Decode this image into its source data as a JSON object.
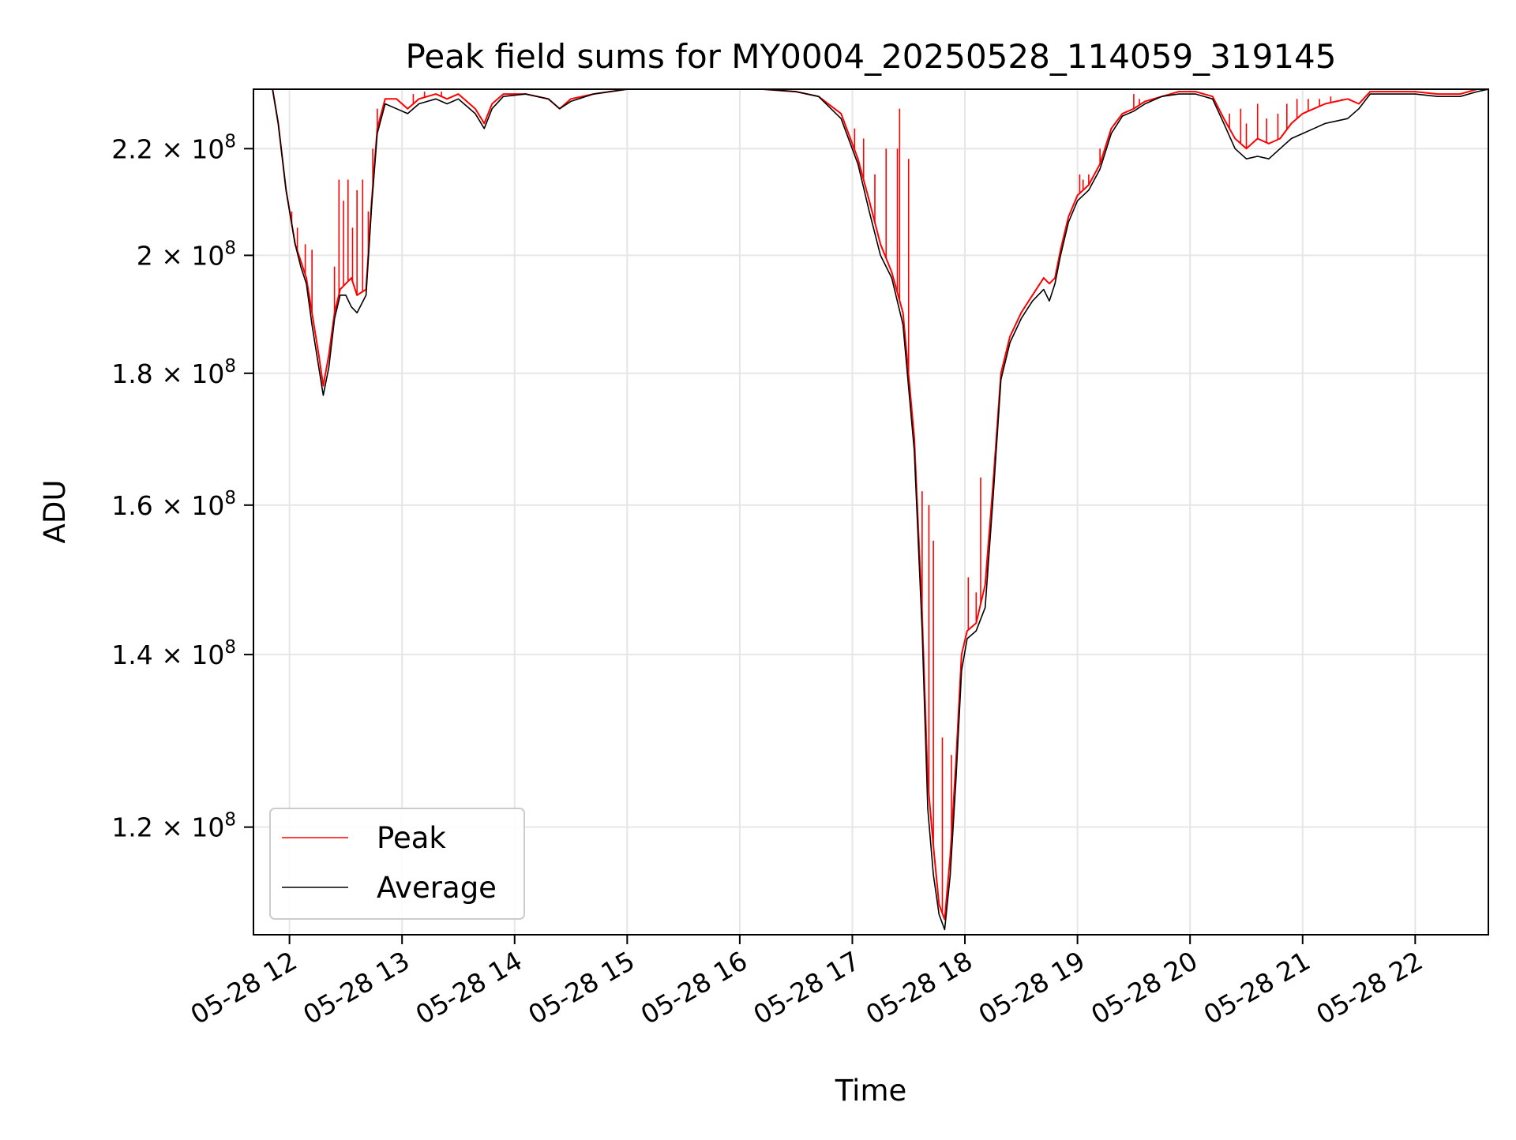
{
  "chart_data": {
    "type": "line",
    "title": "Peak field sums for MY0004_20250528_114059_319145",
    "xlabel": "Time",
    "ylabel": "ADU",
    "x_unit": "hours of day on 2025-05-28",
    "xlim": [
      11.68,
      22.65
    ],
    "ylim": [
      109000000,
      232000000
    ],
    "yscale": "log",
    "grid": true,
    "legend_position": "lower-left",
    "x_ticks": [
      {
        "value": 12,
        "label": "05-28 12"
      },
      {
        "value": 13,
        "label": "05-28 13"
      },
      {
        "value": 14,
        "label": "05-28 14"
      },
      {
        "value": 15,
        "label": "05-28 15"
      },
      {
        "value": 16,
        "label": "05-28 16"
      },
      {
        "value": 17,
        "label": "05-28 17"
      },
      {
        "value": 18,
        "label": "05-28 18"
      },
      {
        "value": 19,
        "label": "05-28 19"
      },
      {
        "value": 20,
        "label": "05-28 20"
      },
      {
        "value": 21,
        "label": "05-28 21"
      },
      {
        "value": 22,
        "label": "05-28 22"
      }
    ],
    "y_ticks": [
      {
        "value": 120000000,
        "mantissa": "1.2",
        "base": "10",
        "exp": "8"
      },
      {
        "value": 140000000,
        "mantissa": "1.4",
        "base": "10",
        "exp": "8"
      },
      {
        "value": 160000000,
        "mantissa": "1.6",
        "base": "10",
        "exp": "8"
      },
      {
        "value": 180000000,
        "mantissa": "1.8",
        "base": "10",
        "exp": "8"
      },
      {
        "value": 200000000,
        "mantissa": "2",
        "base": "10",
        "exp": "8"
      },
      {
        "value": 220000000,
        "mantissa": "2.2",
        "base": "10",
        "exp": "8"
      }
    ],
    "series": [
      {
        "name": "Peak",
        "color": "#ff0000",
        "points": [
          [
            11.68,
            232000000
          ],
          [
            11.85,
            232000000
          ],
          [
            11.9,
            225000000
          ],
          [
            11.97,
            212000000
          ],
          [
            12.05,
            202000000
          ],
          [
            12.1,
            199000000
          ],
          [
            12.15,
            196000000
          ],
          [
            12.2,
            190000000
          ],
          [
            12.26,
            183000000
          ],
          [
            12.3,
            178000000
          ],
          [
            12.35,
            183000000
          ],
          [
            12.4,
            190000000
          ],
          [
            12.45,
            194000000
          ],
          [
            12.5,
            195000000
          ],
          [
            12.55,
            196000000
          ],
          [
            12.6,
            193000000
          ],
          [
            12.68,
            194000000
          ],
          [
            12.73,
            210000000
          ],
          [
            12.78,
            224000000
          ],
          [
            12.85,
            230000000
          ],
          [
            12.95,
            230000000
          ],
          [
            13.05,
            228000000
          ],
          [
            13.15,
            230000000
          ],
          [
            13.3,
            231000000
          ],
          [
            13.4,
            230000000
          ],
          [
            13.5,
            231000000
          ],
          [
            13.65,
            228000000
          ],
          [
            13.73,
            225000000
          ],
          [
            13.8,
            229000000
          ],
          [
            13.9,
            231000000
          ],
          [
            14.1,
            231000000
          ],
          [
            14.3,
            230000000
          ],
          [
            14.4,
            228000000
          ],
          [
            14.5,
            230000000
          ],
          [
            14.7,
            231000000
          ],
          [
            15.0,
            232000000
          ],
          [
            15.6,
            232000000
          ],
          [
            16.2,
            232000000
          ],
          [
            16.5,
            231500000
          ],
          [
            16.7,
            230500000
          ],
          [
            16.9,
            227000000
          ],
          [
            17.05,
            218000000
          ],
          [
            17.15,
            210000000
          ],
          [
            17.25,
            202000000
          ],
          [
            17.35,
            197000000
          ],
          [
            17.45,
            190000000
          ],
          [
            17.55,
            170000000
          ],
          [
            17.62,
            145000000
          ],
          [
            17.67,
            125000000
          ],
          [
            17.72,
            118000000
          ],
          [
            17.77,
            112000000
          ],
          [
            17.82,
            110500000
          ],
          [
            17.87,
            117000000
          ],
          [
            17.92,
            127000000
          ],
          [
            17.97,
            140000000
          ],
          [
            18.02,
            143000000
          ],
          [
            18.1,
            144000000
          ],
          [
            18.18,
            149000000
          ],
          [
            18.25,
            163000000
          ],
          [
            18.32,
            180000000
          ],
          [
            18.4,
            186000000
          ],
          [
            18.5,
            190000000
          ],
          [
            18.6,
            193000000
          ],
          [
            18.7,
            196000000
          ],
          [
            18.75,
            195000000
          ],
          [
            18.8,
            196000000
          ],
          [
            18.85,
            201000000
          ],
          [
            18.92,
            207000000
          ],
          [
            19.0,
            211000000
          ],
          [
            19.1,
            213000000
          ],
          [
            19.2,
            217000000
          ],
          [
            19.3,
            224000000
          ],
          [
            19.4,
            227000000
          ],
          [
            19.5,
            228000000
          ],
          [
            19.6,
            229500000
          ],
          [
            19.75,
            230500000
          ],
          [
            19.9,
            231500000
          ],
          [
            20.05,
            231500000
          ],
          [
            20.2,
            230500000
          ],
          [
            20.3,
            226000000
          ],
          [
            20.4,
            222000000
          ],
          [
            20.5,
            220000000
          ],
          [
            20.6,
            222000000
          ],
          [
            20.7,
            221000000
          ],
          [
            20.8,
            222000000
          ],
          [
            20.9,
            225000000
          ],
          [
            21.0,
            227000000
          ],
          [
            21.1,
            228000000
          ],
          [
            21.2,
            229000000
          ],
          [
            21.3,
            229500000
          ],
          [
            21.4,
            230000000
          ],
          [
            21.5,
            229000000
          ],
          [
            21.6,
            231500000
          ],
          [
            21.8,
            231500000
          ],
          [
            22.0,
            231500000
          ],
          [
            22.2,
            231000000
          ],
          [
            22.4,
            231000000
          ],
          [
            22.55,
            232000000
          ],
          [
            22.65,
            232000000
          ]
        ]
      },
      {
        "name": "Average",
        "color": "#000000",
        "points": [
          [
            11.68,
            232000000
          ],
          [
            11.85,
            232000000
          ],
          [
            11.9,
            225000000
          ],
          [
            11.97,
            212000000
          ],
          [
            12.05,
            202000000
          ],
          [
            12.1,
            198000000
          ],
          [
            12.15,
            195000000
          ],
          [
            12.2,
            188000000
          ],
          [
            12.26,
            181000000
          ],
          [
            12.3,
            176500000
          ],
          [
            12.35,
            181000000
          ],
          [
            12.4,
            189000000
          ],
          [
            12.45,
            193000000
          ],
          [
            12.5,
            193000000
          ],
          [
            12.55,
            191000000
          ],
          [
            12.6,
            190000000
          ],
          [
            12.68,
            193000000
          ],
          [
            12.73,
            209000000
          ],
          [
            12.78,
            223000000
          ],
          [
            12.85,
            229000000
          ],
          [
            12.95,
            228000000
          ],
          [
            13.05,
            227000000
          ],
          [
            13.15,
            229000000
          ],
          [
            13.3,
            230000000
          ],
          [
            13.4,
            229000000
          ],
          [
            13.5,
            230000000
          ],
          [
            13.65,
            227000000
          ],
          [
            13.73,
            224000000
          ],
          [
            13.8,
            228000000
          ],
          [
            13.9,
            230500000
          ],
          [
            14.1,
            231000000
          ],
          [
            14.3,
            230000000
          ],
          [
            14.4,
            228000000
          ],
          [
            14.5,
            229500000
          ],
          [
            14.7,
            231000000
          ],
          [
            15.0,
            232000000
          ],
          [
            15.6,
            232000000
          ],
          [
            16.2,
            232000000
          ],
          [
            16.5,
            231500000
          ],
          [
            16.7,
            230500000
          ],
          [
            16.9,
            226000000
          ],
          [
            17.05,
            217000000
          ],
          [
            17.15,
            208000000
          ],
          [
            17.25,
            200000000
          ],
          [
            17.35,
            196000000
          ],
          [
            17.45,
            188000000
          ],
          [
            17.55,
            168000000
          ],
          [
            17.62,
            143000000
          ],
          [
            17.67,
            122000000
          ],
          [
            17.72,
            115000000
          ],
          [
            17.77,
            111000000
          ],
          [
            17.82,
            109500000
          ],
          [
            17.87,
            115000000
          ],
          [
            17.92,
            125000000
          ],
          [
            17.97,
            138000000
          ],
          [
            18.02,
            142000000
          ],
          [
            18.1,
            143000000
          ],
          [
            18.18,
            146000000
          ],
          [
            18.25,
            161000000
          ],
          [
            18.32,
            179000000
          ],
          [
            18.4,
            185000000
          ],
          [
            18.5,
            189000000
          ],
          [
            18.6,
            192000000
          ],
          [
            18.7,
            194000000
          ],
          [
            18.75,
            192000000
          ],
          [
            18.8,
            195000000
          ],
          [
            18.85,
            200000000
          ],
          [
            18.92,
            206000000
          ],
          [
            19.0,
            210000000
          ],
          [
            19.1,
            212000000
          ],
          [
            19.2,
            216000000
          ],
          [
            19.3,
            223000000
          ],
          [
            19.4,
            226500000
          ],
          [
            19.5,
            227500000
          ],
          [
            19.6,
            229000000
          ],
          [
            19.75,
            230500000
          ],
          [
            19.9,
            231000000
          ],
          [
            20.05,
            231000000
          ],
          [
            20.2,
            230000000
          ],
          [
            20.3,
            225000000
          ],
          [
            20.4,
            220000000
          ],
          [
            20.5,
            218000000
          ],
          [
            20.6,
            218500000
          ],
          [
            20.7,
            218000000
          ],
          [
            20.8,
            220000000
          ],
          [
            20.9,
            222000000
          ],
          [
            21.0,
            223000000
          ],
          [
            21.1,
            224000000
          ],
          [
            21.2,
            225000000
          ],
          [
            21.3,
            225500000
          ],
          [
            21.4,
            226000000
          ],
          [
            21.5,
            228000000
          ],
          [
            21.6,
            231000000
          ],
          [
            21.8,
            231000000
          ],
          [
            22.0,
            231000000
          ],
          [
            22.2,
            230500000
          ],
          [
            22.4,
            230500000
          ],
          [
            22.55,
            231500000
          ],
          [
            22.65,
            232000000
          ]
        ]
      }
    ],
    "peak_spikes": [
      [
        12.02,
        208000000
      ],
      [
        12.07,
        205000000
      ],
      [
        12.14,
        202000000
      ],
      [
        12.2,
        201000000
      ],
      [
        12.4,
        198000000
      ],
      [
        12.44,
        214000000
      ],
      [
        12.48,
        210000000
      ],
      [
        12.52,
        214000000
      ],
      [
        12.56,
        205000000
      ],
      [
        12.6,
        212000000
      ],
      [
        12.65,
        214000000
      ],
      [
        12.7,
        208000000
      ],
      [
        12.74,
        220000000
      ],
      [
        12.78,
        228000000
      ],
      [
        13.1,
        231000000
      ],
      [
        13.2,
        231500000
      ],
      [
        13.35,
        231500000
      ],
      [
        17.02,
        224000000
      ],
      [
        17.1,
        222000000
      ],
      [
        17.2,
        215000000
      ],
      [
        17.3,
        220000000
      ],
      [
        17.4,
        220000000
      ],
      [
        17.42,
        228000000
      ],
      [
        17.5,
        218000000
      ],
      [
        17.62,
        162000000
      ],
      [
        17.68,
        160000000
      ],
      [
        17.72,
        155000000
      ],
      [
        17.8,
        130000000
      ],
      [
        17.88,
        128000000
      ],
      [
        17.95,
        135000000
      ],
      [
        18.03,
        150000000
      ],
      [
        18.1,
        148000000
      ],
      [
        18.14,
        164000000
      ],
      [
        18.2,
        150000000
      ],
      [
        19.02,
        215000000
      ],
      [
        19.05,
        214000000
      ],
      [
        19.1,
        215000000
      ],
      [
        19.2,
        220000000
      ],
      [
        19.5,
        231000000
      ],
      [
        19.55,
        230000000
      ],
      [
        20.35,
        227000000
      ],
      [
        20.45,
        228000000
      ],
      [
        20.5,
        225000000
      ],
      [
        20.6,
        229000000
      ],
      [
        20.68,
        226000000
      ],
      [
        20.78,
        227000000
      ],
      [
        20.86,
        229000000
      ],
      [
        20.95,
        230000000
      ],
      [
        21.05,
        230000000
      ],
      [
        21.15,
        230000000
      ],
      [
        21.25,
        230500000
      ],
      [
        21.35,
        230000000
      ],
      [
        21.42,
        230000000
      ]
    ]
  }
}
